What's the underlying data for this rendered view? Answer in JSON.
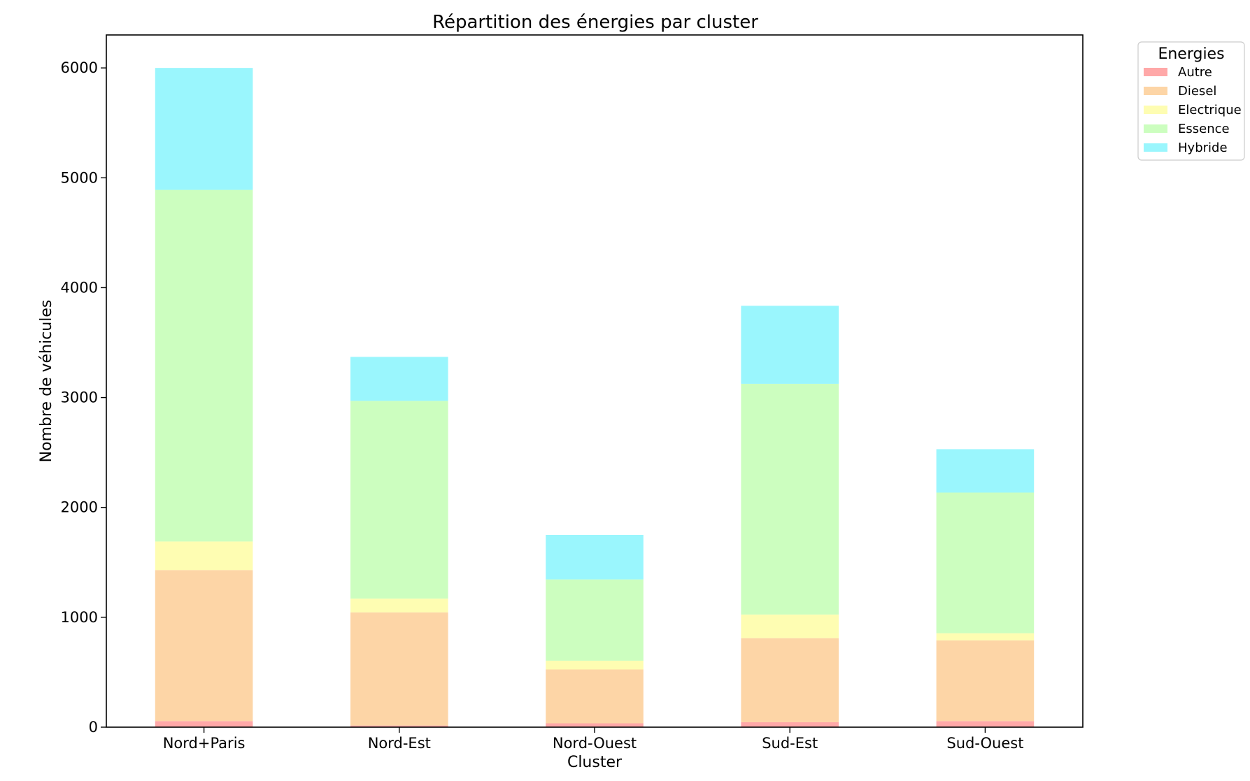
{
  "chart_data": {
    "type": "bar",
    "stacked": true,
    "title": "Répartition des énergies par cluster",
    "xlabel": "Cluster",
    "ylabel": "Nombre de véhicules",
    "categories": [
      "Nord+Paris",
      "Nord-Est",
      "Nord-Ouest",
      "Sud-Est",
      "Sud-Ouest"
    ],
    "ylim": [
      0,
      6300
    ],
    "yticks": [
      0,
      1000,
      2000,
      3000,
      4000,
      5000,
      6000
    ],
    "grid": false,
    "legend": {
      "title": "Energies",
      "placement": "outside-top-right"
    },
    "series": [
      {
        "name": "Autre",
        "color": "#ffa8a8",
        "values": [
          55,
          15,
          35,
          45,
          55
        ]
      },
      {
        "name": "Diesel",
        "color": "#fdd5a6",
        "values": [
          1375,
          1030,
          490,
          765,
          735
        ]
      },
      {
        "name": "Electrique",
        "color": "#fefdb2",
        "values": [
          260,
          125,
          80,
          215,
          65
        ]
      },
      {
        "name": "Essence",
        "color": "#ccfebf",
        "values": [
          3200,
          1800,
          740,
          2100,
          1280
        ]
      },
      {
        "name": "Hybride",
        "color": "#9af6fd",
        "values": [
          1110,
          400,
          405,
          710,
          395
        ]
      }
    ]
  }
}
